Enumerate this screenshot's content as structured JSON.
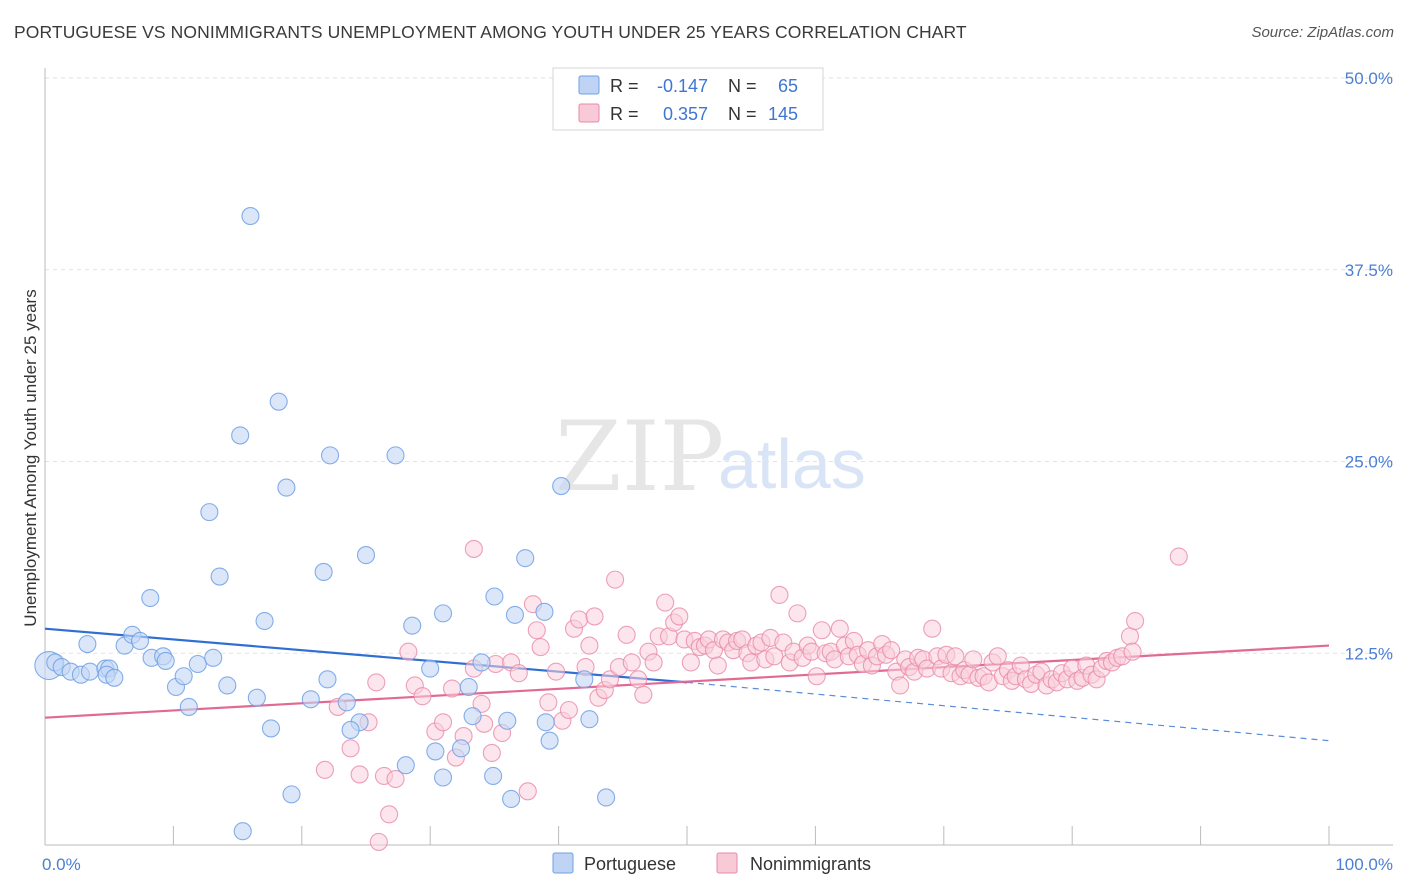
{
  "header": {
    "title": "PORTUGUESE VS NONIMMIGRANTS UNEMPLOYMENT AMONG YOUTH UNDER 25 YEARS CORRELATION CHART",
    "source": "Source: ZipAtlas.com"
  },
  "watermark": {
    "zip": "ZIP",
    "atlas": "atlas"
  },
  "legend_top": {
    "rows": [
      {
        "r_label": "R =",
        "r_value": "-0.147",
        "n_label": "N =",
        "n_value": "65",
        "color": "#a9c6f0"
      },
      {
        "r_label": "R =",
        "r_value": "0.357",
        "n_label": "N =",
        "n_value": "145",
        "color": "#f5b8cb"
      }
    ]
  },
  "legend_bottom": {
    "items": [
      {
        "label": "Portuguese",
        "color": "#a9c6f0"
      },
      {
        "label": "Nonimmigrants",
        "color": "#f5b8cb"
      }
    ]
  },
  "chart_data": {
    "type": "scatter",
    "xlabel": "",
    "ylabel": "Unemployment Among Youth under 25 years",
    "xlim": [
      0,
      100
    ],
    "ylim": [
      0,
      50
    ],
    "x_tick_labels": [
      {
        "value": 0,
        "label": "0.0%"
      },
      {
        "value": 100,
        "label": "100.0%"
      }
    ],
    "x_minor_ticks": [
      0,
      10,
      20,
      30,
      40,
      50,
      60,
      70,
      80,
      90,
      100
    ],
    "y_ticks": [
      {
        "value": 12.5,
        "label": "12.5%"
      },
      {
        "value": 25,
        "label": "25.0%"
      },
      {
        "value": 37.5,
        "label": "37.5%"
      },
      {
        "value": 50,
        "label": "50.0%"
      }
    ],
    "grid": true,
    "colors": {
      "portuguese": "#6fa0e6",
      "portuguese_fill": "#c3d7f5",
      "nonimmigrants": "#e889a8",
      "nonimmigrants_fill": "#f9cfdc",
      "trend_blue": "#2f6fd4",
      "trend_pink": "#e06a94"
    },
    "series": [
      {
        "name": "Portuguese",
        "trend": {
          "x0": 0,
          "y0": 14.1,
          "x1": 50,
          "y1": 10.6,
          "dash_x1": 100,
          "dash_y1": 6.8
        },
        "points": [
          [
            0.3,
            11.7
          ],
          [
            0.8,
            11.9
          ],
          [
            1.3,
            11.6
          ],
          [
            2.0,
            11.3
          ],
          [
            2.8,
            11.1
          ],
          [
            3.3,
            13.1
          ],
          [
            3.5,
            11.3
          ],
          [
            4.7,
            11.5
          ],
          [
            5.0,
            11.5
          ],
          [
            4.8,
            11.1
          ],
          [
            6.2,
            13.0
          ],
          [
            5.4,
            10.9
          ],
          [
            6.8,
            13.7
          ],
          [
            7.4,
            13.3
          ],
          [
            8.3,
            12.2
          ],
          [
            8.2,
            16.1
          ],
          [
            9.2,
            12.3
          ],
          [
            9.4,
            12.0
          ],
          [
            10.2,
            10.3
          ],
          [
            10.8,
            11.0
          ],
          [
            11.2,
            9.0
          ],
          [
            11.9,
            11.8
          ],
          [
            12.8,
            21.7
          ],
          [
            13.1,
            12.2
          ],
          [
            13.6,
            17.5
          ],
          [
            14.2,
            10.4
          ],
          [
            15.2,
            26.7
          ],
          [
            15.4,
            0.9
          ],
          [
            16.0,
            41.0
          ],
          [
            16.5,
            9.6
          ],
          [
            17.1,
            14.6
          ],
          [
            17.6,
            7.6
          ],
          [
            18.2,
            28.9
          ],
          [
            18.8,
            23.3
          ],
          [
            19.2,
            3.3
          ],
          [
            20.7,
            9.5
          ],
          [
            21.7,
            17.8
          ],
          [
            22.0,
            10.8
          ],
          [
            22.2,
            25.4
          ],
          [
            23.5,
            9.3
          ],
          [
            24.5,
            8.0
          ],
          [
            23.8,
            7.5
          ],
          [
            25.0,
            18.9
          ],
          [
            27.3,
            25.4
          ],
          [
            28.1,
            5.2
          ],
          [
            30.0,
            11.5
          ],
          [
            28.6,
            14.3
          ],
          [
            30.4,
            6.1
          ],
          [
            31.0,
            4.4
          ],
          [
            31.0,
            15.1
          ],
          [
            32.4,
            6.3
          ],
          [
            33.0,
            10.3
          ],
          [
            33.3,
            8.4
          ],
          [
            34.0,
            11.9
          ],
          [
            35.0,
            16.2
          ],
          [
            34.9,
            4.5
          ],
          [
            36.0,
            8.1
          ],
          [
            36.3,
            3.0
          ],
          [
            36.6,
            15.0
          ],
          [
            37.4,
            18.7
          ],
          [
            38.9,
            15.2
          ],
          [
            39.0,
            8.0
          ],
          [
            39.3,
            6.8
          ],
          [
            40.2,
            23.4
          ],
          [
            42.0,
            10.8
          ],
          [
            42.4,
            8.2
          ],
          [
            43.7,
            3.1
          ]
        ]
      },
      {
        "name": "Nonimmigrants",
        "trend": {
          "x0": 0,
          "y0": 8.3,
          "x1": 100,
          "y1": 13.0
        },
        "points": [
          [
            21.8,
            4.9
          ],
          [
            22.8,
            9.0
          ],
          [
            23.8,
            6.3
          ],
          [
            24.5,
            4.6
          ],
          [
            25.2,
            8.0
          ],
          [
            25.8,
            10.6
          ],
          [
            26.0,
            0.2
          ],
          [
            26.4,
            4.5
          ],
          [
            26.8,
            2.0
          ],
          [
            27.3,
            4.3
          ],
          [
            28.3,
            12.6
          ],
          [
            28.8,
            10.4
          ],
          [
            29.4,
            9.7
          ],
          [
            30.4,
            7.4
          ],
          [
            31.0,
            8.0
          ],
          [
            31.7,
            10.2
          ],
          [
            32.0,
            5.7
          ],
          [
            32.6,
            7.1
          ],
          [
            33.4,
            19.3
          ],
          [
            33.4,
            11.5
          ],
          [
            34.0,
            9.2
          ],
          [
            34.2,
            7.9
          ],
          [
            34.8,
            6.0
          ],
          [
            35.1,
            11.8
          ],
          [
            35.6,
            7.3
          ],
          [
            36.3,
            11.9
          ],
          [
            36.9,
            11.2
          ],
          [
            37.6,
            3.5
          ],
          [
            38.0,
            15.7
          ],
          [
            38.3,
            14.0
          ],
          [
            38.6,
            12.9
          ],
          [
            39.2,
            9.3
          ],
          [
            39.8,
            11.3
          ],
          [
            40.3,
            8.1
          ],
          [
            40.8,
            8.8
          ],
          [
            41.2,
            14.1
          ],
          [
            41.6,
            14.7
          ],
          [
            42.1,
            11.6
          ],
          [
            42.4,
            13.0
          ],
          [
            42.8,
            14.9
          ],
          [
            43.1,
            9.6
          ],
          [
            43.6,
            10.1
          ],
          [
            44.0,
            10.8
          ],
          [
            44.4,
            17.3
          ],
          [
            44.7,
            11.6
          ],
          [
            45.3,
            13.7
          ],
          [
            45.7,
            11.9
          ],
          [
            46.2,
            10.8
          ],
          [
            46.6,
            9.8
          ],
          [
            47.0,
            12.6
          ],
          [
            47.4,
            11.9
          ],
          [
            47.8,
            13.6
          ],
          [
            48.3,
            15.8
          ],
          [
            48.6,
            13.6
          ],
          [
            49.0,
            14.5
          ],
          [
            49.4,
            14.9
          ],
          [
            49.8,
            13.4
          ],
          [
            50.3,
            11.9
          ],
          [
            50.6,
            13.3
          ],
          [
            51.0,
            12.9
          ],
          [
            51.4,
            13.0
          ],
          [
            51.7,
            13.4
          ],
          [
            52.1,
            12.7
          ],
          [
            52.4,
            11.7
          ],
          [
            52.8,
            13.4
          ],
          [
            53.2,
            13.2
          ],
          [
            53.6,
            12.7
          ],
          [
            53.9,
            13.3
          ],
          [
            54.3,
            13.4
          ],
          [
            54.7,
            12.5
          ],
          [
            55.0,
            11.9
          ],
          [
            55.4,
            13.0
          ],
          [
            55.8,
            13.2
          ],
          [
            56.1,
            12.1
          ],
          [
            56.5,
            13.5
          ],
          [
            56.8,
            12.3
          ],
          [
            57.2,
            16.3
          ],
          [
            57.5,
            13.2
          ],
          [
            58.0,
            11.9
          ],
          [
            58.3,
            12.6
          ],
          [
            58.6,
            15.1
          ],
          [
            59.0,
            12.2
          ],
          [
            59.4,
            13.0
          ],
          [
            59.7,
            12.6
          ],
          [
            60.1,
            11.0
          ],
          [
            60.5,
            14.0
          ],
          [
            60.8,
            12.5
          ],
          [
            61.2,
            12.6
          ],
          [
            61.5,
            12.1
          ],
          [
            61.9,
            14.1
          ],
          [
            62.3,
            13.0
          ],
          [
            62.6,
            12.3
          ],
          [
            63.0,
            13.3
          ],
          [
            63.3,
            12.4
          ],
          [
            63.7,
            11.8
          ],
          [
            64.1,
            12.7
          ],
          [
            64.4,
            11.7
          ],
          [
            64.8,
            12.3
          ],
          [
            65.2,
            13.1
          ],
          [
            65.5,
            12.4
          ],
          [
            65.9,
            12.7
          ],
          [
            66.3,
            11.3
          ],
          [
            66.6,
            10.4
          ],
          [
            67.0,
            12.1
          ],
          [
            67.3,
            11.6
          ],
          [
            67.7,
            11.3
          ],
          [
            68.0,
            12.2
          ],
          [
            68.4,
            12.1
          ],
          [
            68.7,
            11.5
          ],
          [
            69.1,
            14.1
          ],
          [
            69.5,
            12.3
          ],
          [
            69.8,
            11.5
          ],
          [
            70.2,
            12.4
          ],
          [
            70.6,
            11.2
          ],
          [
            70.9,
            12.3
          ],
          [
            71.3,
            11.0
          ],
          [
            71.6,
            11.4
          ],
          [
            72.0,
            11.1
          ],
          [
            72.3,
            12.1
          ],
          [
            72.7,
            10.9
          ],
          [
            73.1,
            11.0
          ],
          [
            73.5,
            10.6
          ],
          [
            73.8,
            11.9
          ],
          [
            74.2,
            12.3
          ],
          [
            74.6,
            11.0
          ],
          [
            75.0,
            11.4
          ],
          [
            75.3,
            10.7
          ],
          [
            75.6,
            11.0
          ],
          [
            76.0,
            11.7
          ],
          [
            76.4,
            10.8
          ],
          [
            76.8,
            10.5
          ],
          [
            77.2,
            11.1
          ],
          [
            77.6,
            11.3
          ],
          [
            78.0,
            10.4
          ],
          [
            78.4,
            10.8
          ],
          [
            78.8,
            10.6
          ],
          [
            79.2,
            11.2
          ],
          [
            79.6,
            10.8
          ],
          [
            80.0,
            11.5
          ],
          [
            80.4,
            10.7
          ],
          [
            80.8,
            10.9
          ],
          [
            81.1,
            11.7
          ],
          [
            81.5,
            11.1
          ],
          [
            81.9,
            10.8
          ],
          [
            82.3,
            11.5
          ],
          [
            82.7,
            12.0
          ],
          [
            83.1,
            11.9
          ],
          [
            83.5,
            12.2
          ],
          [
            83.9,
            12.3
          ],
          [
            84.5,
            13.6
          ],
          [
            84.9,
            14.6
          ],
          [
            84.7,
            12.6
          ],
          [
            88.3,
            18.8
          ]
        ]
      }
    ]
  }
}
